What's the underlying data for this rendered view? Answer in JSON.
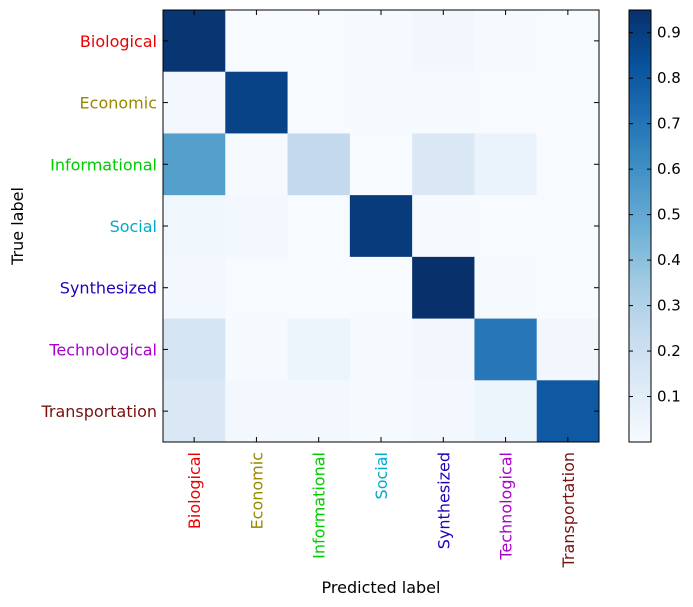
{
  "chart_data": {
    "type": "heatmap",
    "xlabel": "Predicted label",
    "ylabel": "True label",
    "categories": [
      "Biological",
      "Economic",
      "Informational",
      "Social",
      "Synthesized",
      "Technological",
      "Transportation"
    ],
    "category_colors": [
      "#ee0000",
      "#998800",
      "#00cc00",
      "#00aacc",
      "#2200bb",
      "#aa00cc",
      "#771111"
    ],
    "matrix": [
      [
        0.93,
        0.0,
        0.0,
        0.01,
        0.03,
        0.01,
        0.0
      ],
      [
        0.02,
        0.88,
        0.0,
        0.01,
        0.01,
        0.0,
        0.0
      ],
      [
        0.54,
        0.01,
        0.25,
        0.0,
        0.14,
        0.06,
        0.0
      ],
      [
        0.04,
        0.02,
        0.0,
        0.91,
        0.01,
        0.0,
        0.0
      ],
      [
        0.02,
        0.0,
        0.0,
        0.0,
        0.96,
        0.01,
        0.0
      ],
      [
        0.16,
        0.01,
        0.05,
        0.01,
        0.03,
        0.69,
        0.03
      ],
      [
        0.14,
        0.02,
        0.02,
        0.01,
        0.02,
        0.05,
        0.8
      ]
    ],
    "colormap": "Blues",
    "colorbar": {
      "min": 0.0,
      "max": 0.95,
      "ticks": [
        0.1,
        0.2,
        0.3,
        0.4,
        0.5,
        0.6,
        0.7,
        0.8,
        0.9
      ],
      "tick_labels": [
        "0.1",
        "0.2",
        "0.3",
        "0.4",
        "0.5",
        "0.6",
        "0.7",
        "0.8",
        "0.9"
      ]
    }
  }
}
